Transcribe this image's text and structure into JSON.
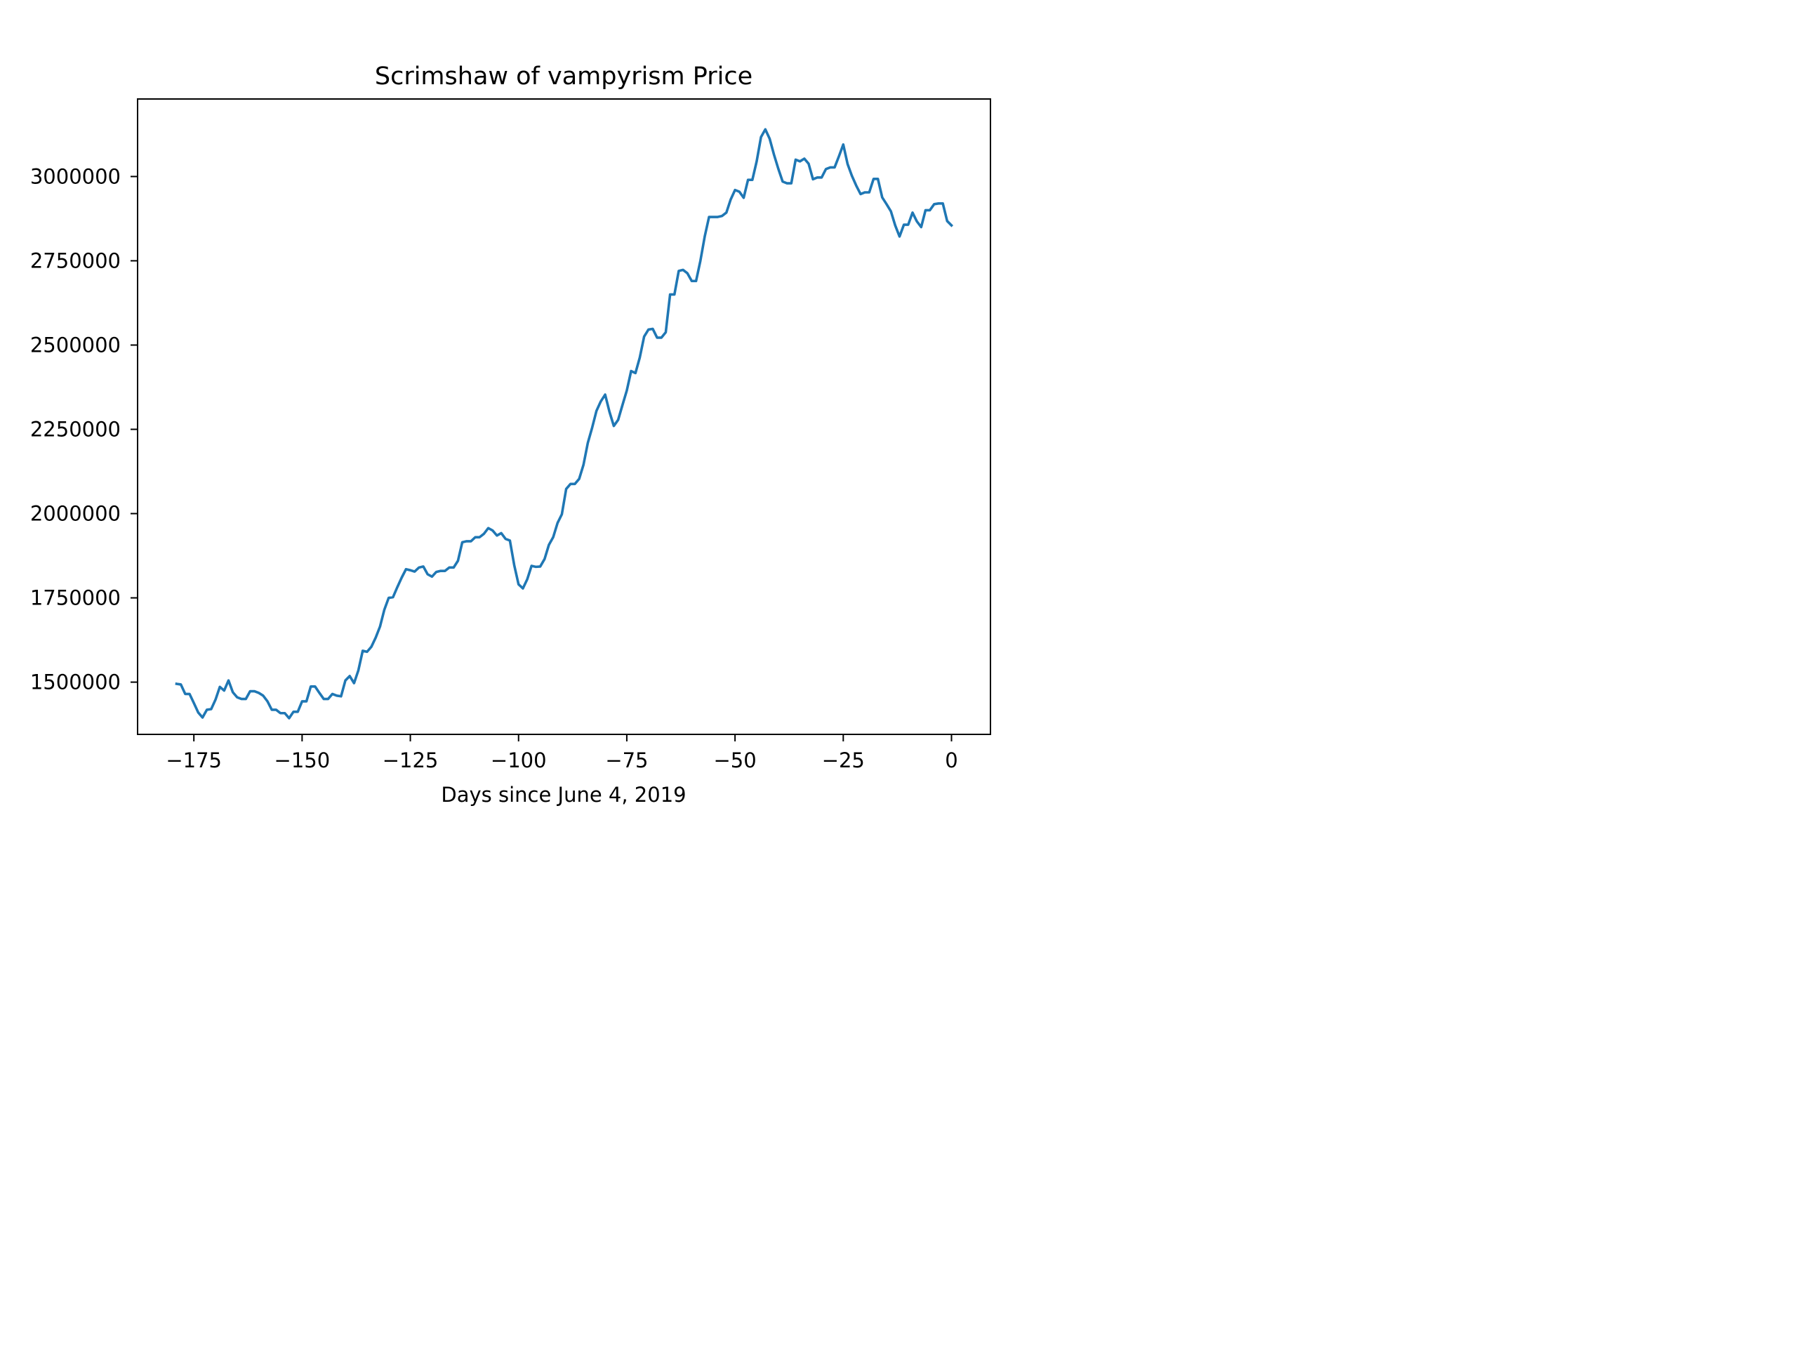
{
  "chart_data": {
    "type": "line",
    "title": "Scrimshaw of vampyrism Price",
    "xlabel": "Days since June 4, 2019",
    "ylabel": "",
    "xlim": [
      -188,
      9
    ],
    "ylim": [
      1345000,
      3230000
    ],
    "xticks": [
      -175,
      -150,
      -125,
      -100,
      -75,
      -50,
      -25,
      0
    ],
    "xtick_labels": [
      "−175",
      "−150",
      "−125",
      "−100",
      "−75",
      "−50",
      "−25",
      "0"
    ],
    "yticks": [
      1500000,
      1750000,
      2000000,
      2250000,
      2500000,
      2750000,
      3000000
    ],
    "ytick_labels": [
      "1500000",
      "1750000",
      "2000000",
      "2250000",
      "2500000",
      "2750000",
      "3000000"
    ],
    "grid": false,
    "series": [
      {
        "name": "",
        "color": "#1f77b4",
        "x": [
          -179,
          -178,
          -177,
          -176,
          -175,
          -174,
          -173,
          -172,
          -171,
          -170,
          -169,
          -168,
          -167,
          -166,
          -165,
          -164,
          -163,
          -162,
          -161,
          -160,
          -159,
          -158,
          -157,
          -156,
          -155,
          -154,
          -153,
          -152,
          -151,
          -150,
          -149,
          -148,
          -147,
          -146,
          -145,
          -144,
          -143,
          -142,
          -141,
          -140,
          -139,
          -138,
          -137,
          -136,
          -135,
          -134,
          -133,
          -132,
          -131,
          -130,
          -129,
          -128,
          -127,
          -126,
          -125,
          -124,
          -123,
          -122,
          -121,
          -120,
          -119,
          -118,
          -117,
          -116,
          -115,
          -114,
          -113,
          -112,
          -111,
          -110,
          -109,
          -108,
          -107,
          -106,
          -105,
          -104,
          -103,
          -102,
          -101,
          -100,
          -99,
          -98,
          -97,
          -96,
          -95,
          -94,
          -93,
          -92,
          -91,
          -90,
          -89,
          -88,
          -87,
          -86,
          -85,
          -84,
          -83,
          -82,
          -81,
          -80,
          -79,
          -78,
          -77,
          -76,
          -75,
          -74,
          -73,
          -72,
          -71,
          -70,
          -69,
          -68,
          -67,
          -66,
          -65,
          -64,
          -63,
          -62,
          -61,
          -60,
          -59,
          -58,
          -57,
          -56,
          -55,
          -54,
          -53,
          -52,
          -51,
          -50,
          -49,
          -48,
          -47,
          -46,
          -45,
          -44,
          -43,
          -42,
          -41,
          -40,
          -39,
          -38,
          -37,
          -36,
          -35,
          -34,
          -33,
          -32,
          -31,
          -30,
          -29,
          -28,
          -27,
          -26,
          -25,
          -24,
          -23,
          -22,
          -21,
          -20,
          -19,
          -18,
          -17,
          -16,
          -15,
          -14,
          -13,
          -12,
          -11,
          -10,
          -9,
          -8,
          -7,
          -6,
          -5,
          -4,
          -3,
          -2,
          -1,
          0
        ],
        "y": [
          1495000,
          1493000,
          1465000,
          1465000,
          1438000,
          1410000,
          1395000,
          1418000,
          1420000,
          1448000,
          1486000,
          1475000,
          1505000,
          1470000,
          1455000,
          1450000,
          1450000,
          1473000,
          1473000,
          1468000,
          1460000,
          1443000,
          1418000,
          1418000,
          1408000,
          1408000,
          1393000,
          1412000,
          1412000,
          1443000,
          1443000,
          1487000,
          1487000,
          1468000,
          1450000,
          1450000,
          1465000,
          1460000,
          1458000,
          1505000,
          1518000,
          1497000,
          1535000,
          1593000,
          1590000,
          1605000,
          1632000,
          1665000,
          1715000,
          1750000,
          1752000,
          1782000,
          1810000,
          1835000,
          1832000,
          1828000,
          1840000,
          1843000,
          1820000,
          1813000,
          1827000,
          1830000,
          1830000,
          1840000,
          1840000,
          1860000,
          1915000,
          1918000,
          1918000,
          1930000,
          1930000,
          1940000,
          1957000,
          1950000,
          1935000,
          1942000,
          1925000,
          1920000,
          1847000,
          1790000,
          1778000,
          1805000,
          1845000,
          1842000,
          1843000,
          1865000,
          1907000,
          1930000,
          1972000,
          1998000,
          2073000,
          2088000,
          2088000,
          2103000,
          2145000,
          2210000,
          2255000,
          2305000,
          2333000,
          2353000,
          2302000,
          2260000,
          2278000,
          2322000,
          2365000,
          2423000,
          2417000,
          2463000,
          2525000,
          2546000,
          2548000,
          2522000,
          2522000,
          2538000,
          2650000,
          2650000,
          2720000,
          2723000,
          2713000,
          2690000,
          2690000,
          2750000,
          2822000,
          2880000,
          2880000,
          2880000,
          2883000,
          2893000,
          2932000,
          2960000,
          2955000,
          2937000,
          2990000,
          2990000,
          3045000,
          3117000,
          3140000,
          3112000,
          3065000,
          3023000,
          2985000,
          2980000,
          2980000,
          3050000,
          3045000,
          3053000,
          3038000,
          2992000,
          2997000,
          2997000,
          3022000,
          3027000,
          3027000,
          3060000,
          3095000,
          3037000,
          3002000,
          2973000,
          2948000,
          2953000,
          2953000,
          2993000,
          2993000,
          2938000,
          2918000,
          2897000,
          2855000,
          2822000,
          2857000,
          2857000,
          2893000,
          2867000,
          2850000,
          2900000,
          2900000,
          2918000,
          2920000,
          2920000,
          2868000,
          2855000
        ]
      }
    ]
  }
}
